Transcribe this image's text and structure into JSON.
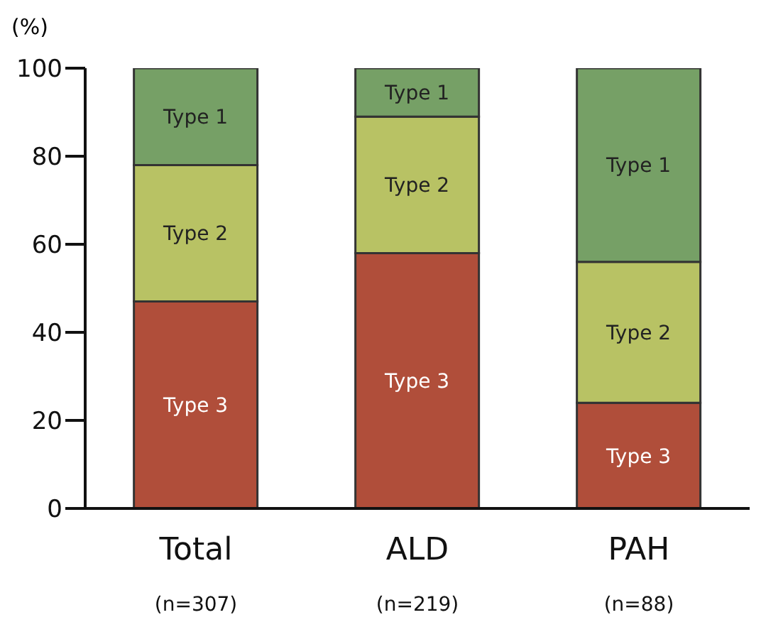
{
  "chart_data": {
    "type": "bar",
    "stacked": true,
    "ylabel": "(%)",
    "categories": [
      "Total\n(n=307)",
      "ALD\n(n=219)",
      "PAH\n(n=88)"
    ],
    "series": [
      {
        "name": "Type 3",
        "color": "#b04e3a",
        "values": [
          47,
          58,
          24
        ]
      },
      {
        "name": "Type 2",
        "color": "#b8c264",
        "values": [
          31,
          31,
          32
        ]
      },
      {
        "name": "Type 1",
        "color": "#76a066",
        "values": [
          22,
          11,
          44
        ]
      }
    ],
    "ylim": [
      0,
      100
    ],
    "yticks": [
      0,
      20,
      40,
      60,
      80,
      100
    ],
    "grid": false,
    "legend": false
  }
}
